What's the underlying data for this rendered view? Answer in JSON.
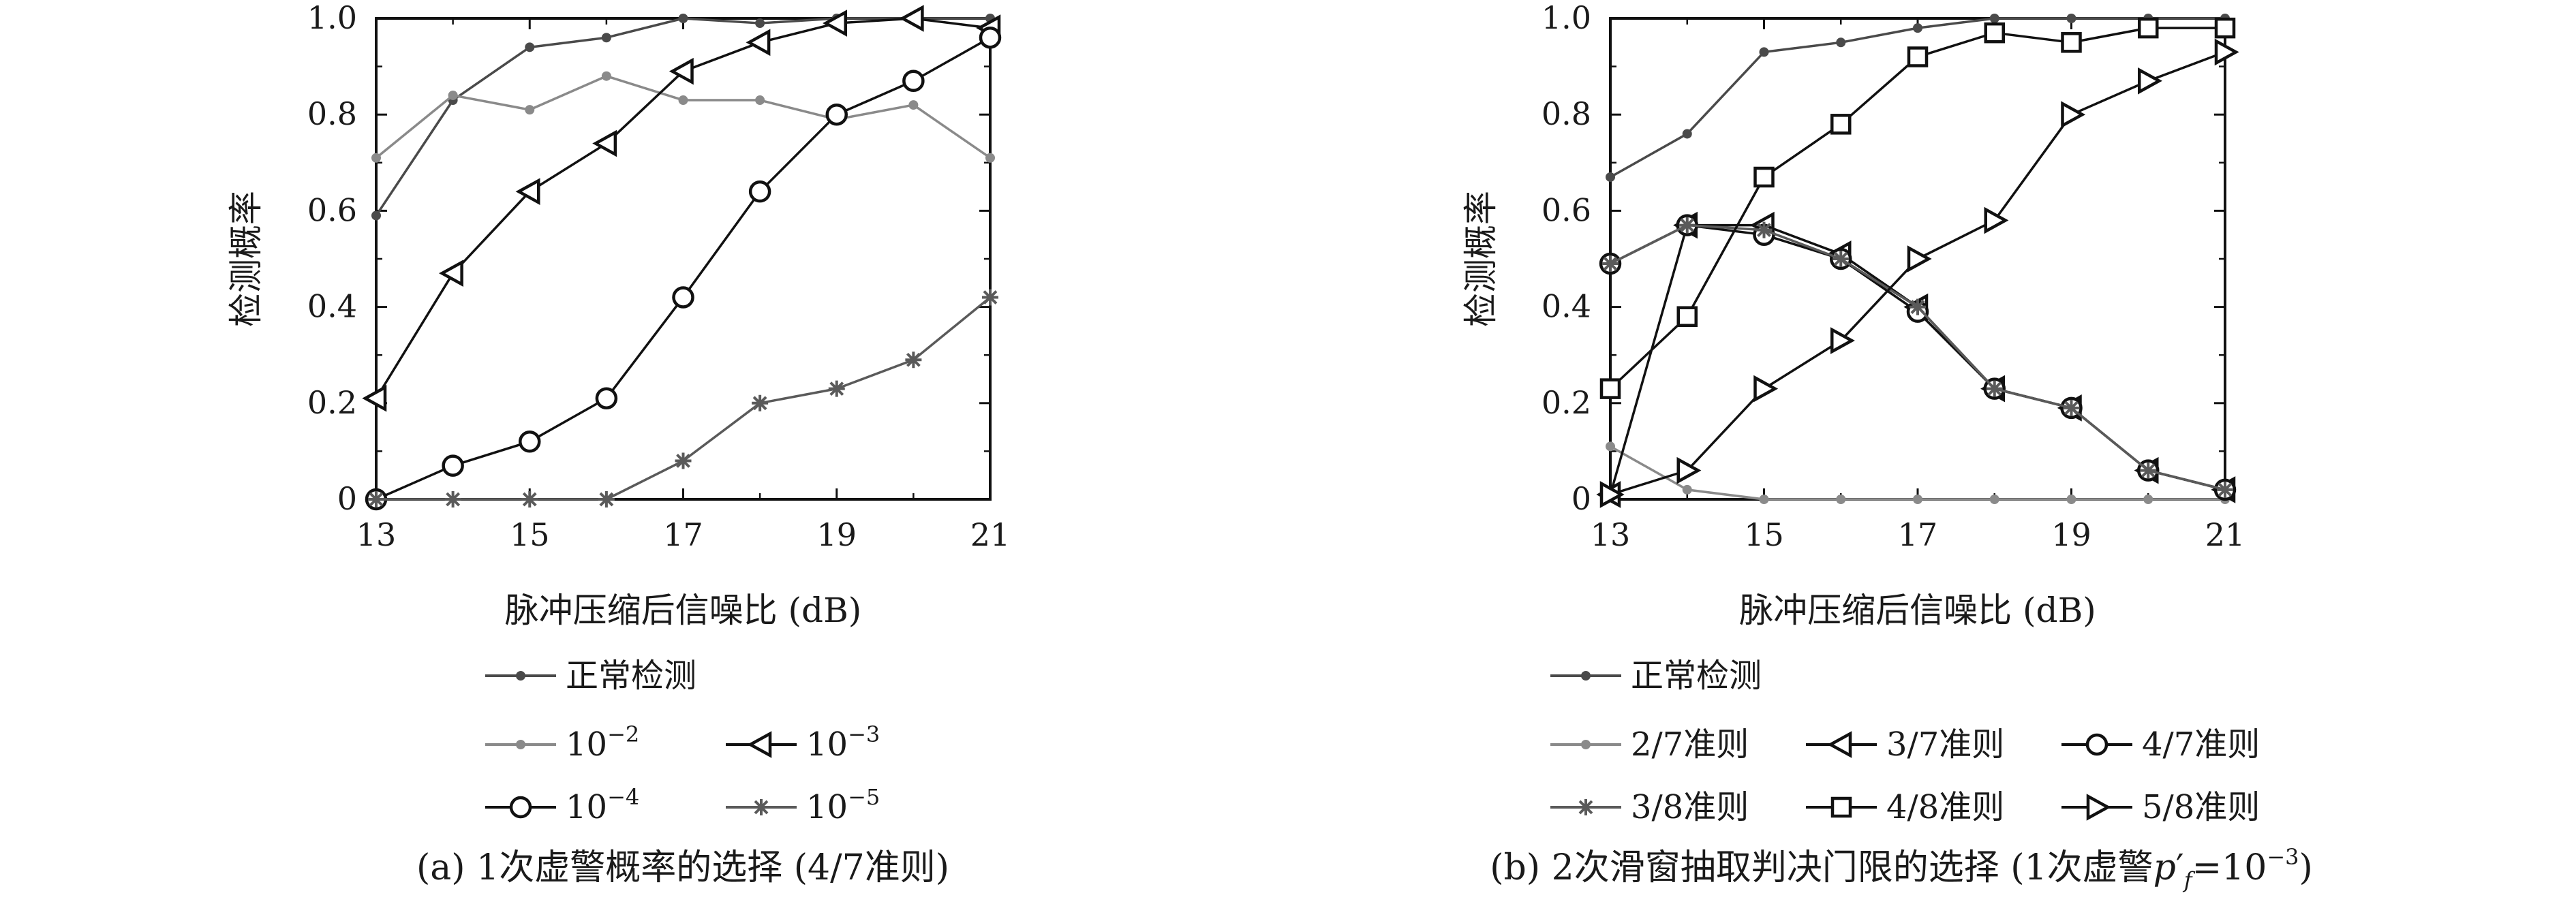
{
  "chart_data": [
    {
      "type": "line",
      "caption": "(a) 1次虚警概率的选择 (4/7准则)",
      "xlabel": "脉冲压缩后信噪比 (dB)",
      "ylabel": "检测概率",
      "xlim": [
        13,
        21
      ],
      "ylim": [
        0,
        1.0
      ],
      "xticks": [
        "13",
        "15",
        "17",
        "19",
        "21"
      ],
      "yticks": [
        "0",
        "0.2",
        "0.4",
        "0.6",
        "0.8",
        "1.0"
      ],
      "x": [
        13,
        14,
        15,
        16,
        17,
        18,
        19,
        20,
        21
      ],
      "series": [
        {
          "name": "正常检测",
          "marker": "dot",
          "color": "#4a4a4a",
          "values": [
            0.59,
            0.83,
            0.94,
            0.96,
            1.0,
            0.99,
            1.0,
            1.0,
            1.0
          ]
        },
        {
          "name": "10",
          "sup": "−2",
          "marker": "dot",
          "color": "#8a8a8a",
          "values": [
            0.71,
            0.84,
            0.81,
            0.88,
            0.83,
            0.83,
            0.79,
            0.82,
            0.71
          ]
        },
        {
          "name": "10",
          "sup": "−3",
          "marker": "tri-left",
          "color": "#111111",
          "values": [
            0.21,
            0.47,
            0.64,
            0.74,
            0.89,
            0.95,
            0.99,
            1.0,
            0.98
          ]
        },
        {
          "name": "10",
          "sup": "−4",
          "marker": "circle",
          "color": "#111111",
          "values": [
            0.0,
            0.07,
            0.12,
            0.21,
            0.42,
            0.64,
            0.8,
            0.87,
            0.96
          ]
        },
        {
          "name": "10",
          "sup": "−5",
          "marker": "star",
          "color": "#5a5a5a",
          "values": [
            0.0,
            0.0,
            0.0,
            0.0,
            0.08,
            0.2,
            0.23,
            0.29,
            0.42
          ]
        }
      ]
    },
    {
      "type": "line",
      "caption": "(b) 2次滑窗抽取判决门限的选择 (1次虚警",
      "caption_math_base": "p",
      "caption_math_prime": "′",
      "caption_math_sub": "f",
      "caption_math_rest": "=10",
      "caption_math_sup": "−3",
      "caption_end": ")",
      "xlabel": "脉冲压缩后信噪比 (dB)",
      "ylabel": "检测概率",
      "xlim": [
        13,
        21
      ],
      "ylim": [
        0,
        1.0
      ],
      "xticks": [
        "13",
        "15",
        "17",
        "19",
        "21"
      ],
      "yticks": [
        "0",
        "0.2",
        "0.4",
        "0.6",
        "0.8",
        "1.0"
      ],
      "x": [
        13,
        14,
        15,
        16,
        17,
        18,
        19,
        20,
        21
      ],
      "series": [
        {
          "name": "正常检测",
          "marker": "dot",
          "color": "#4a4a4a",
          "values": [
            0.67,
            0.76,
            0.93,
            0.95,
            0.98,
            1.0,
            1.0,
            1.0,
            1.0
          ]
        },
        {
          "name": "2/7准则",
          "marker": "dot",
          "color": "#8a8a8a",
          "values": [
            0.11,
            0.02,
            0.0,
            0.0,
            0.0,
            0.0,
            0.0,
            0.0,
            0.0
          ]
        },
        {
          "name": "3/7准则",
          "marker": "tri-left",
          "color": "#111111",
          "values": [
            0.01,
            0.57,
            0.57,
            0.51,
            0.4,
            0.23,
            0.19,
            0.06,
            0.02
          ]
        },
        {
          "name": "4/7准则",
          "marker": "circle",
          "color": "#111111",
          "values": [
            0.49,
            0.57,
            0.55,
            0.5,
            0.39,
            0.23,
            0.19,
            0.06,
            0.02
          ]
        },
        {
          "name": "3/8准则",
          "marker": "star",
          "color": "#5a5a5a",
          "values": [
            0.49,
            0.57,
            0.56,
            0.5,
            0.4,
            0.23,
            0.19,
            0.06,
            0.02
          ]
        },
        {
          "name": "4/8准则",
          "marker": "square",
          "color": "#111111",
          "values": [
            0.23,
            0.38,
            0.67,
            0.78,
            0.92,
            0.97,
            0.95,
            0.98,
            0.98
          ]
        },
        {
          "name": "5/8准则",
          "marker": "tri-right",
          "color": "#111111",
          "values": [
            0.01,
            0.06,
            0.23,
            0.33,
            0.5,
            0.58,
            0.8,
            0.87,
            0.93
          ]
        }
      ]
    }
  ]
}
